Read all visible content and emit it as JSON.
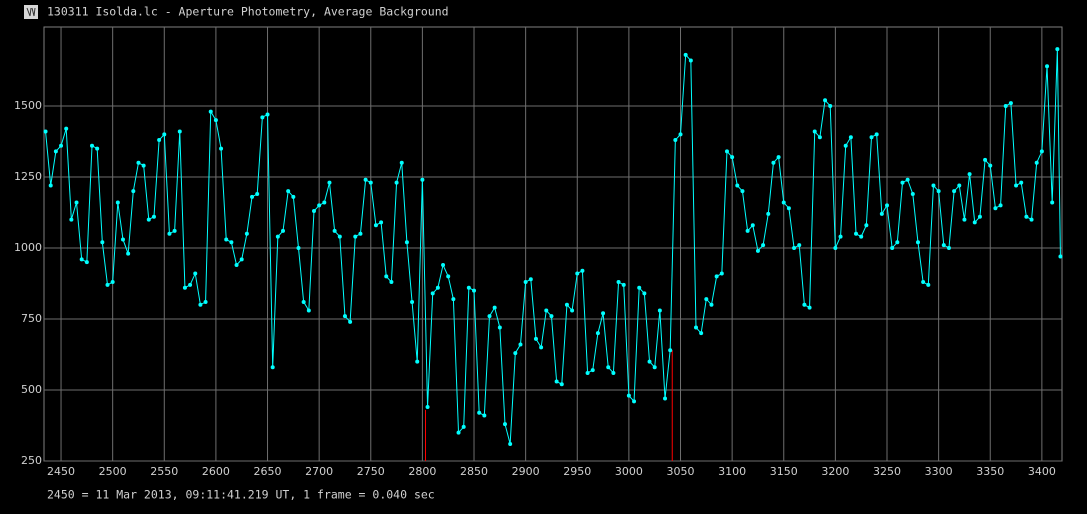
{
  "chart_data": {
    "type": "line",
    "title": "130311 Isolda.lc - Aperture Photometry, Average Background",
    "footnote": "2450 = 11 Mar 2013, 09:11:41.219 UT, 1 frame = 0.040 sec",
    "color": "#00ffff",
    "grid": true,
    "xlim": [
      2433.5,
      3419.5
    ],
    "ylim": [
      250,
      1778
    ],
    "xticks": [
      2450,
      2500,
      2550,
      2600,
      2650,
      2700,
      2750,
      2800,
      2850,
      2900,
      2950,
      3000,
      3050,
      3100,
      3150,
      3200,
      3250,
      3300,
      3350,
      3400
    ],
    "yticks": [
      250,
      500,
      750,
      1000,
      1250,
      1500
    ],
    "markers": {
      "color": "#ff0000",
      "x": [
        2803,
        3042
      ],
      "values": [
        430,
        640
      ]
    },
    "x": [
      2435,
      2440,
      2445,
      2450,
      2455,
      2460,
      2465,
      2470,
      2475,
      2480,
      2485,
      2490,
      2495,
      2500,
      2505,
      2510,
      2515,
      2520,
      2525,
      2530,
      2535,
      2540,
      2545,
      2550,
      2555,
      2560,
      2565,
      2570,
      2575,
      2580,
      2585,
      2590,
      2595,
      2600,
      2605,
      2610,
      2615,
      2620,
      2625,
      2630,
      2635,
      2640,
      2645,
      2650,
      2655,
      2660,
      2665,
      2670,
      2675,
      2680,
      2685,
      2690,
      2695,
      2700,
      2705,
      2710,
      2715,
      2720,
      2725,
      2730,
      2735,
      2740,
      2745,
      2750,
      2755,
      2760,
      2765,
      2770,
      2775,
      2780,
      2785,
      2790,
      2795,
      2800,
      2805,
      2810,
      2815,
      2820,
      2825,
      2830,
      2835,
      2840,
      2845,
      2850,
      2855,
      2860,
      2865,
      2870,
      2875,
      2880,
      2885,
      2890,
      2895,
      2900,
      2905,
      2910,
      2915,
      2920,
      2925,
      2930,
      2935,
      2940,
      2945,
      2950,
      2955,
      2960,
      2965,
      2970,
      2975,
      2980,
      2985,
      2990,
      2995,
      3000,
      3005,
      3010,
      3015,
      3020,
      3025,
      3030,
      3035,
      3040,
      3045,
      3050,
      3055,
      3060,
      3065,
      3070,
      3075,
      3080,
      3085,
      3090,
      3095,
      3100,
      3105,
      3110,
      3115,
      3120,
      3125,
      3130,
      3135,
      3140,
      3145,
      3150,
      3155,
      3160,
      3165,
      3170,
      3175,
      3180,
      3185,
      3190,
      3195,
      3200,
      3205,
      3210,
      3215,
      3220,
      3225,
      3230,
      3235,
      3240,
      3245,
      3250,
      3255,
      3260,
      3265,
      3270,
      3275,
      3280,
      3285,
      3290,
      3295,
      3300,
      3305,
      3310,
      3315,
      3320,
      3325,
      3330,
      3335,
      3340,
      3345,
      3350,
      3355,
      3360,
      3365,
      3370,
      3375,
      3380,
      3385,
      3390,
      3395,
      3400,
      3405,
      3410,
      3415,
      3418
    ],
    "values": [
      1410,
      1220,
      1340,
      1360,
      1420,
      1100,
      1160,
      960,
      950,
      1360,
      1350,
      1020,
      870,
      880,
      1160,
      1030,
      980,
      1200,
      1300,
      1290,
      1100,
      1110,
      1380,
      1400,
      1050,
      1060,
      1410,
      860,
      870,
      910,
      800,
      810,
      1480,
      1450,
      1350,
      1030,
      1020,
      940,
      960,
      1050,
      1180,
      1190,
      1460,
      1470,
      580,
      1040,
      1060,
      1200,
      1180,
      1000,
      810,
      780,
      1130,
      1150,
      1160,
      1230,
      1060,
      1040,
      760,
      740,
      1040,
      1050,
      1240,
      1230,
      1080,
      1090,
      900,
      880,
      1230,
      1300,
      1020,
      810,
      600,
      1240,
      440,
      840,
      860,
      940,
      900,
      820,
      350,
      370,
      860,
      850,
      420,
      410,
      760,
      790,
      720,
      380,
      310,
      630,
      660,
      880,
      890,
      680,
      650,
      780,
      760,
      530,
      520,
      800,
      780,
      910,
      920,
      560,
      570,
      700,
      770,
      580,
      560,
      880,
      870,
      480,
      460,
      860,
      840,
      600,
      580,
      780,
      470,
      640,
      1380,
      1400,
      1680,
      1660,
      720,
      700,
      820,
      800,
      900,
      910,
      1340,
      1320,
      1220,
      1200,
      1060,
      1080,
      990,
      1010,
      1120,
      1300,
      1320,
      1160,
      1140,
      1000,
      1010,
      800,
      790,
      1410,
      1390,
      1520,
      1500,
      1000,
      1040,
      1360,
      1390,
      1050,
      1040,
      1080,
      1390,
      1400,
      1120,
      1150,
      1000,
      1020,
      1230,
      1240,
      1190,
      1020,
      880,
      870,
      1220,
      1200,
      1010,
      1000,
      1200,
      1220,
      1100,
      1260,
      1090,
      1110,
      1310,
      1290,
      1140,
      1150,
      1500,
      1510,
      1220,
      1230,
      1110,
      1100,
      1300,
      1340,
      1640,
      1160,
      1700,
      970
    ]
  }
}
